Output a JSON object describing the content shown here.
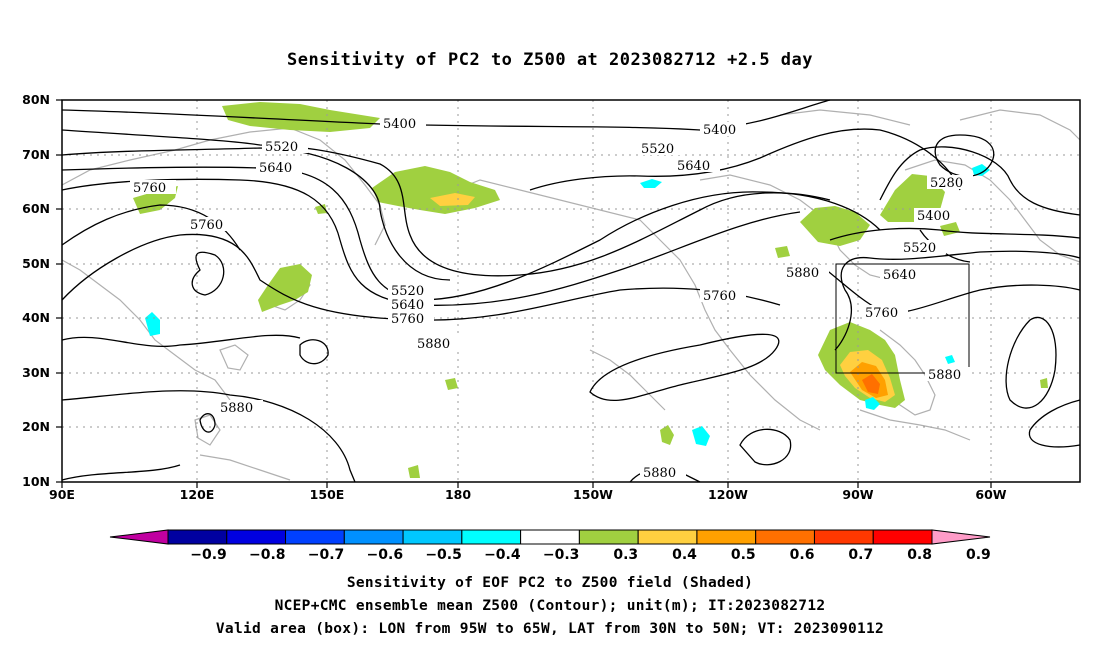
{
  "title": "Sensitivity of PC2 to Z500 at 2023082712 +2.5 day",
  "map": {
    "lat_labels": [
      "80N",
      "70N",
      "60N",
      "50N",
      "40N",
      "30N",
      "20N",
      "10N"
    ],
    "lon_labels": [
      "90E",
      "120E",
      "150E",
      "180",
      "150W",
      "120W",
      "90W",
      "60W"
    ],
    "contour_labels": [
      {
        "text": "5400",
        "name": "contour-label-5400-a"
      },
      {
        "text": "5400",
        "name": "contour-label-5400-b"
      },
      {
        "text": "5520",
        "name": "contour-label-5520-a"
      },
      {
        "text": "5520",
        "name": "contour-label-5520-b"
      },
      {
        "text": "5640",
        "name": "contour-label-5640-a"
      },
      {
        "text": "5640",
        "name": "contour-label-5640-b"
      },
      {
        "text": "5760",
        "name": "contour-label-5760-a"
      },
      {
        "text": "5760",
        "name": "contour-label-5760-b"
      },
      {
        "text": "5280",
        "name": "contour-label-5280"
      },
      {
        "text": "5400",
        "name": "contour-label-5400-c"
      },
      {
        "text": "5520",
        "name": "contour-label-5520-c"
      },
      {
        "text": "5880",
        "name": "contour-label-5880-a"
      },
      {
        "text": "5640",
        "name": "contour-label-5640-c"
      },
      {
        "text": "5520",
        "name": "contour-label-5520-d"
      },
      {
        "text": "5640",
        "name": "contour-label-5640-d"
      },
      {
        "text": "5760",
        "name": "contour-label-5760-c"
      },
      {
        "text": "5760",
        "name": "contour-label-5760-d"
      },
      {
        "text": "5760",
        "name": "contour-label-5760-e"
      },
      {
        "text": "5880",
        "name": "contour-label-5880-b"
      },
      {
        "text": "5880",
        "name": "contour-label-5880-c"
      },
      {
        "text": "5880",
        "name": "contour-label-5880-d"
      },
      {
        "text": "5880",
        "name": "contour-label-5880-e"
      }
    ],
    "valid_box": {
      "lon_west": -95,
      "lon_east": -65,
      "lat_south": 30,
      "lat_north": 50
    }
  },
  "colorbar": {
    "labels": [
      "-0.9",
      "-0.8",
      "-0.7",
      "-0.6",
      "-0.5",
      "-0.4",
      "-0.3",
      "0.3",
      "0.4",
      "0.5",
      "0.6",
      "0.7",
      "0.8",
      "0.9"
    ],
    "colors": [
      "#c000a0",
      "#0000a0",
      "#0000e0",
      "#0040ff",
      "#0090ff",
      "#00c8ff",
      "#00ffff",
      "#ffffff",
      "#a0d040",
      "#ffd040",
      "#ffa000",
      "#ff7000",
      "#ff3800",
      "#ff0000",
      "#ff9cc8"
    ]
  },
  "footer": {
    "line1": "Sensitivity of EOF PC2 to Z500 field (Shaded)",
    "line2": "NCEP+CMC ensemble mean Z500 (Contour); unit(m); IT:2023082712",
    "line3": "Valid area (box): LON from 95W to 65W, LAT from 30N to 50N; VT: 2023090112"
  }
}
